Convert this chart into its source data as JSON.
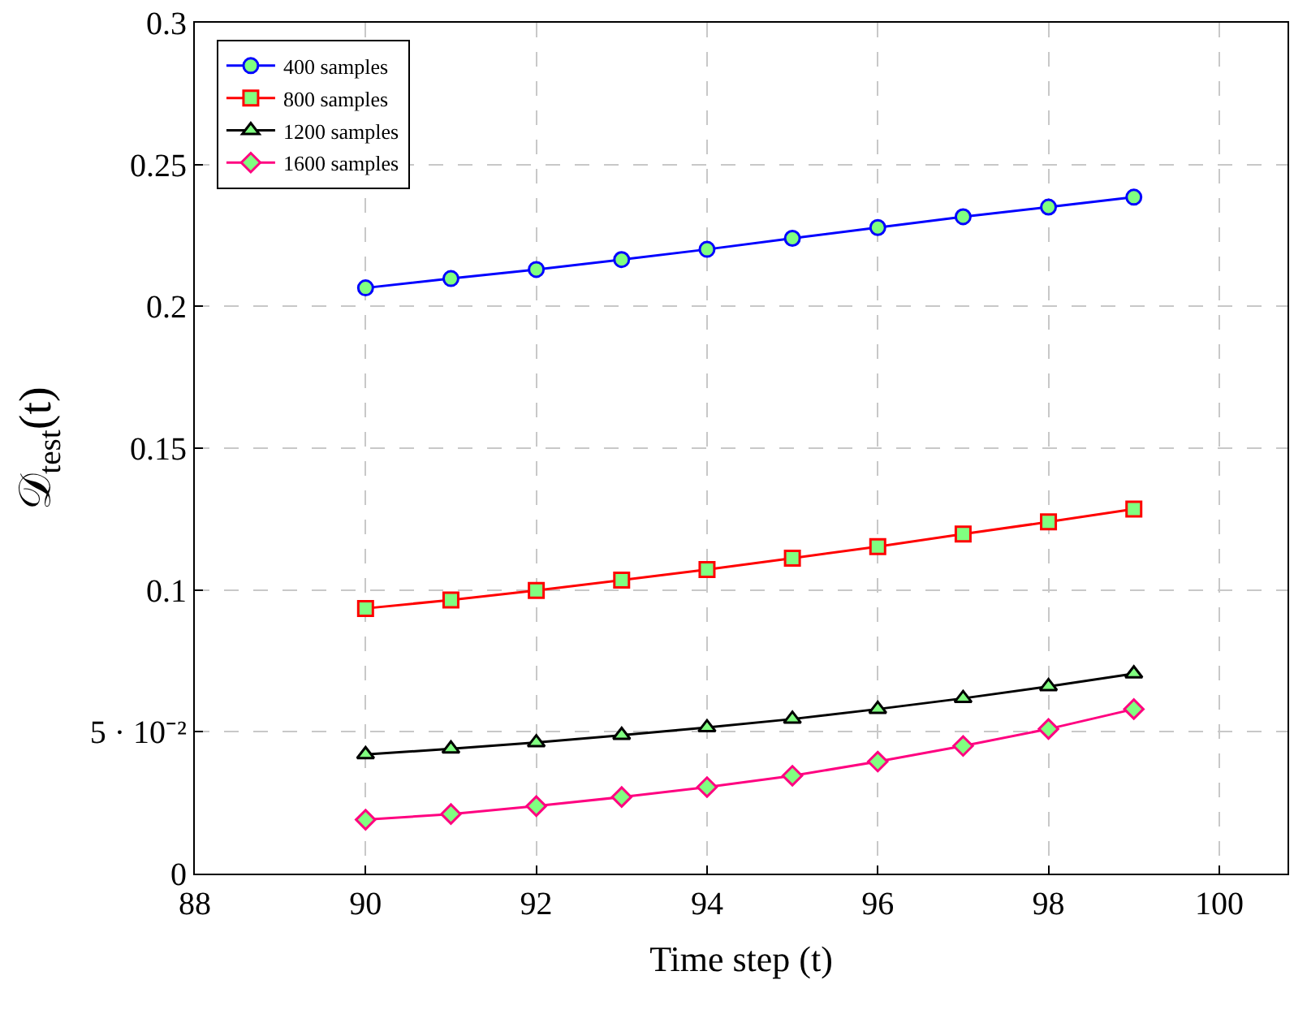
{
  "chart_data": {
    "type": "line",
    "xlabel": "Time step (t)",
    "ylabel": "𝒟$_{test}$(t)",
    "x": [
      90,
      91,
      92,
      93,
      94,
      95,
      96,
      97,
      98,
      99
    ],
    "series": [
      {
        "name": "400 samples",
        "color": "#0000ff",
        "marker": "circle",
        "values": [
          0.2065,
          0.2098,
          0.213,
          0.2165,
          0.2201,
          0.224,
          0.2278,
          0.2316,
          0.235,
          0.2385
        ]
      },
      {
        "name": "800 samples",
        "color": "#ff0000",
        "marker": "square",
        "values": [
          0.0935,
          0.0965,
          0.0998,
          0.1035,
          0.1072,
          0.1112,
          0.1153,
          0.1197,
          0.124,
          0.1285
        ]
      },
      {
        "name": "1200 samples",
        "color": "#000000",
        "marker": "triangle",
        "values": [
          0.042,
          0.044,
          0.0462,
          0.0488,
          0.0515,
          0.0545,
          0.058,
          0.0618,
          0.066,
          0.0705
        ]
      },
      {
        "name": "1600 samples",
        "color": "#ff0080",
        "marker": "diamond",
        "values": [
          0.019,
          0.021,
          0.0238,
          0.027,
          0.0305,
          0.0345,
          0.0395,
          0.045,
          0.051,
          0.058
        ]
      }
    ],
    "xlim": [
      88,
      100.8
    ],
    "xticks": [
      88,
      90,
      92,
      94,
      96,
      98,
      100
    ],
    "ylim": [
      0,
      0.3
    ],
    "yticks": [
      0,
      {
        "value": 0.05,
        "label": "5 · 10⁻²"
      },
      0.1,
      0.15,
      0.2,
      0.25,
      0.3
    ],
    "grid": true,
    "legend": "top left",
    "line_style": "solid"
  }
}
